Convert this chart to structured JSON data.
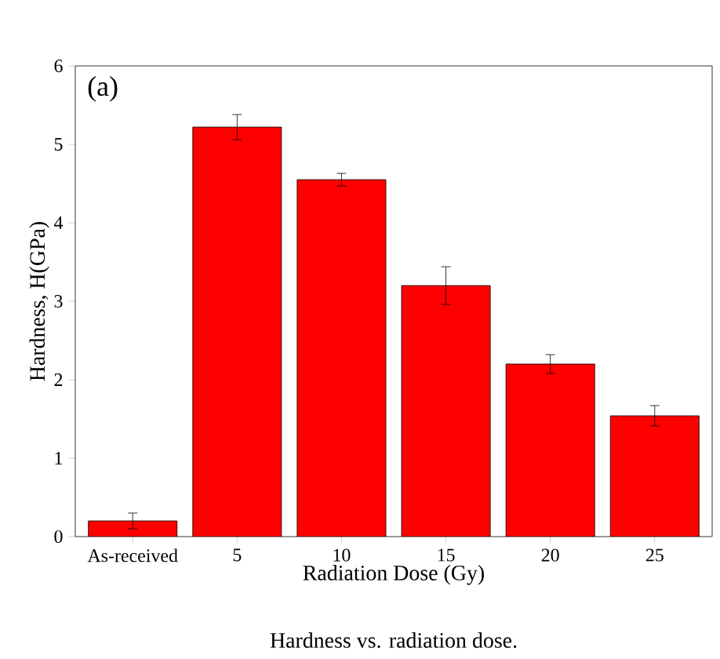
{
  "chart_data": {
    "type": "bar",
    "xlabel": "Radiation Dose (Gy)",
    "ylabel": "Hardness, H(GPa)",
    "categories": [
      "As-received",
      "5",
      "10",
      "15",
      "20",
      "25"
    ],
    "values": [
      0.2,
      5.22,
      4.55,
      3.2,
      2.2,
      1.54
    ],
    "errors": [
      0.1,
      0.16,
      0.08,
      0.24,
      0.12,
      0.13
    ],
    "color": "#ff0000",
    "ylim": [
      0,
      6
    ],
    "yticks": [
      0,
      1,
      2,
      3,
      4,
      5,
      6
    ],
    "annotations": [
      "(a)",
      "Hardness vs. radiation dose."
    ]
  }
}
